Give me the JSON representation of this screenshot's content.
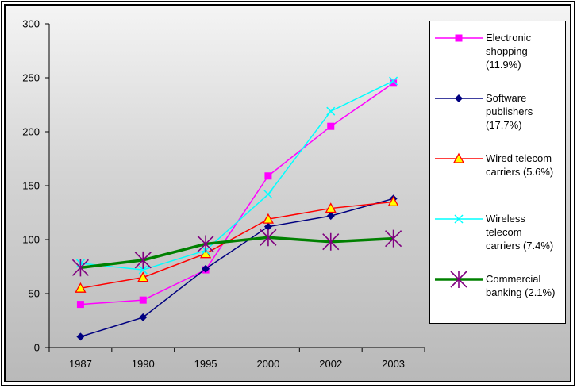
{
  "chart_data": {
    "type": "line",
    "categories": [
      "1987",
      "1990",
      "1995",
      "2000",
      "2002",
      "2003"
    ],
    "ylim": [
      0,
      300
    ],
    "yticks": [
      0,
      50,
      100,
      150,
      200,
      250,
      300
    ],
    "grid": false,
    "legend_position": "right",
    "series": [
      {
        "name": "Electronic\nshopping\n(11.9%)",
        "color": "#ff00ff",
        "marker": "square",
        "values": [
          40,
          44,
          72,
          159,
          205,
          245
        ]
      },
      {
        "name": "Software\npublishers\n(17.7%)",
        "color": "#000080",
        "marker": "diamond",
        "values": [
          10,
          28,
          73,
          112,
          122,
          138
        ]
      },
      {
        "name": "Wired telecom\ncarriers (5.6%)",
        "color": "#ff0000",
        "marker": "triangle",
        "values": [
          55,
          65,
          87,
          119,
          129,
          135
        ]
      },
      {
        "name": "Wireless\ntelecom\ncarriers (7.4%)",
        "color": "#00ffff",
        "marker": "x",
        "values": [
          78,
          72,
          90,
          142,
          219,
          247
        ]
      },
      {
        "name": "Commercial\nbanking (2.1%)",
        "color": "#008000",
        "marker": "star",
        "values": [
          74,
          81,
          96,
          102,
          98,
          101
        ]
      }
    ]
  }
}
